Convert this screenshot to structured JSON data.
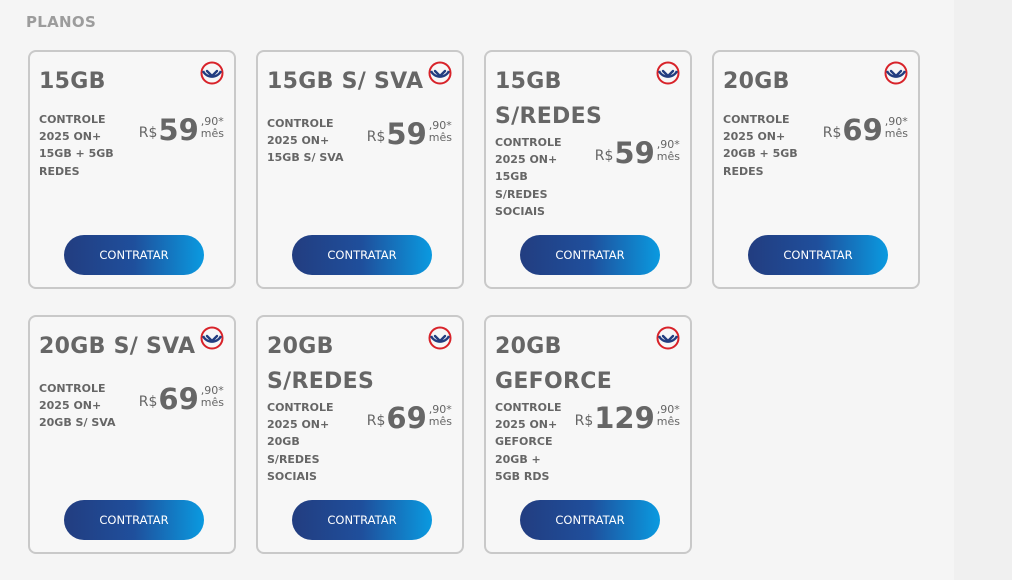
{
  "section_title": "PLANOS",
  "button_label": "CONTRATAR",
  "currency": "R$",
  "period": "mês",
  "plans": [
    {
      "name": "15GB",
      "desc": "CONTROLE 2025 ON+ 15GB + 5GB REDES",
      "price_int": "59",
      "price_cents": ",90*"
    },
    {
      "name": "15GB S/ SVA",
      "desc": "CONTROLE 2025 ON+ 15GB S/ SVA",
      "price_int": "59",
      "price_cents": ",90*"
    },
    {
      "name": "15GB S/REDES",
      "desc": "CONTROLE 2025 ON+ 15GB S/REDES SOCIAIS",
      "price_int": "59",
      "price_cents": ",90*"
    },
    {
      "name": "20GB",
      "desc": "CONTROLE 2025 ON+ 20GB + 5GB REDES",
      "price_int": "69",
      "price_cents": ",90*"
    },
    {
      "name": "20GB S/ SVA",
      "desc": "CONTROLE 2025 ON+ 20GB S/ SVA",
      "price_int": "69",
      "price_cents": ",90*"
    },
    {
      "name": "20GB S/REDES",
      "desc": "CONTROLE 2025 ON+ 20GB S/REDES SOCIAIS",
      "price_int": "69",
      "price_cents": ",90*"
    },
    {
      "name": "20GB GEFORCE",
      "desc": "CONTROLE 2025 ON+ GEFORCE 20GB + 5GB RDS",
      "price_int": "129",
      "price_cents": ",90*"
    }
  ],
  "colors": {
    "accent_blue": "#223d80",
    "accent_cyan": "#0a9ae0",
    "brand_red": "#d8232a"
  },
  "icons": {
    "card_badge": "chevron-down-circle-icon"
  }
}
